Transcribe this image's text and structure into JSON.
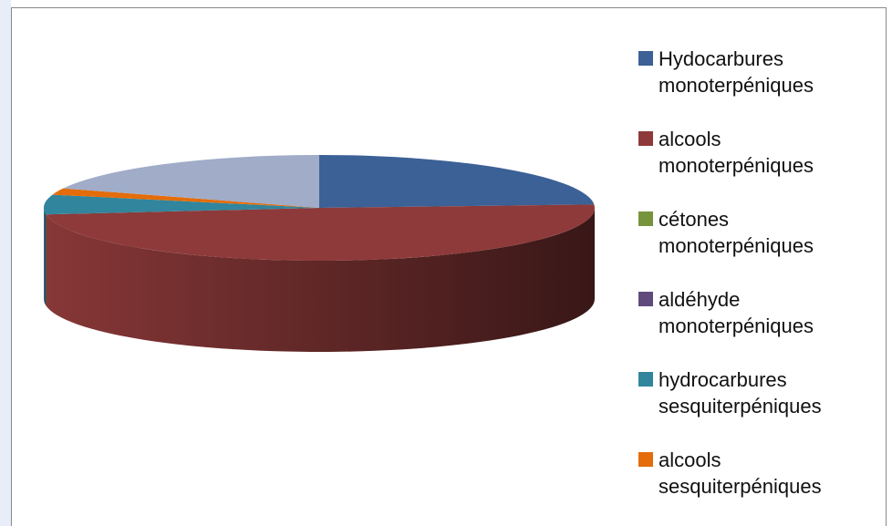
{
  "chart_data": {
    "type": "pie",
    "style": "3d",
    "categories": [
      "Hydocarbures monoterpéniques",
      "alcools monoterpéniques",
      "cétones monoterpéniques",
      "aldéhyde monoterpéniques",
      "hydrocarbures sesquiterpéniques",
      "alcools sesquiterpéniques",
      null
    ],
    "values": [
      24,
      49,
      0,
      0,
      6,
      2,
      19
    ],
    "colors": [
      "#3b6196",
      "#8e3a3a",
      "#77933c",
      "#604a7b",
      "#31859c",
      "#e46c0a",
      "#a0acc8"
    ],
    "legend": "right"
  }
}
